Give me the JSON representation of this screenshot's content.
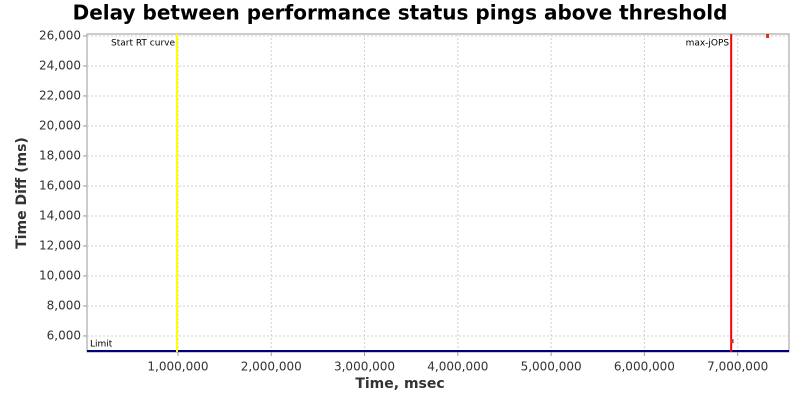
{
  "chart_data": {
    "type": "scatter",
    "title": "Delay between performance status pings above threshold",
    "x_label": "Time, msec",
    "y_label": "Time Diff (ms)",
    "xlim": [
      25000,
      7550000
    ],
    "ylim": [
      4930,
      26130
    ],
    "xticks": [
      {
        "value": 1000000,
        "label": "1,000,000"
      },
      {
        "value": 2000000,
        "label": "2,000,000"
      },
      {
        "value": 3000000,
        "label": "3,000,000"
      },
      {
        "value": 4000000,
        "label": "4,000,000"
      },
      {
        "value": 5000000,
        "label": "5,000,000"
      },
      {
        "value": 6000000,
        "label": "6,000,000"
      },
      {
        "value": 7000000,
        "label": "7,000,000"
      }
    ],
    "yticks": [
      {
        "value": 6000,
        "label": "6,000"
      },
      {
        "value": 8000,
        "label": "8,000"
      },
      {
        "value": 10000,
        "label": "10,000"
      },
      {
        "value": 12000,
        "label": "12,000"
      },
      {
        "value": 14000,
        "label": "14,000"
      },
      {
        "value": 16000,
        "label": "16,000"
      },
      {
        "value": 18000,
        "label": "18,000"
      },
      {
        "value": 20000,
        "label": "20,000"
      },
      {
        "value": 22000,
        "label": "22,000"
      },
      {
        "value": 24000,
        "label": "24,000"
      },
      {
        "value": 26000,
        "label": "26,000"
      }
    ],
    "grid": true,
    "series": [
      {
        "color": "#c0392b",
        "x": [
          6940000,
          7320000
        ],
        "values": [
          5650,
          26000
        ]
      }
    ],
    "vlines": [
      {
        "label": "Start RT curve",
        "x": 990000,
        "color": "#ffff00"
      },
      {
        "label": "max-jOPS",
        "x": 6930000,
        "color": "#ff0000"
      }
    ],
    "hlines": [
      {
        "label": "Limit",
        "y": 5000,
        "color": "#000080"
      }
    ]
  }
}
